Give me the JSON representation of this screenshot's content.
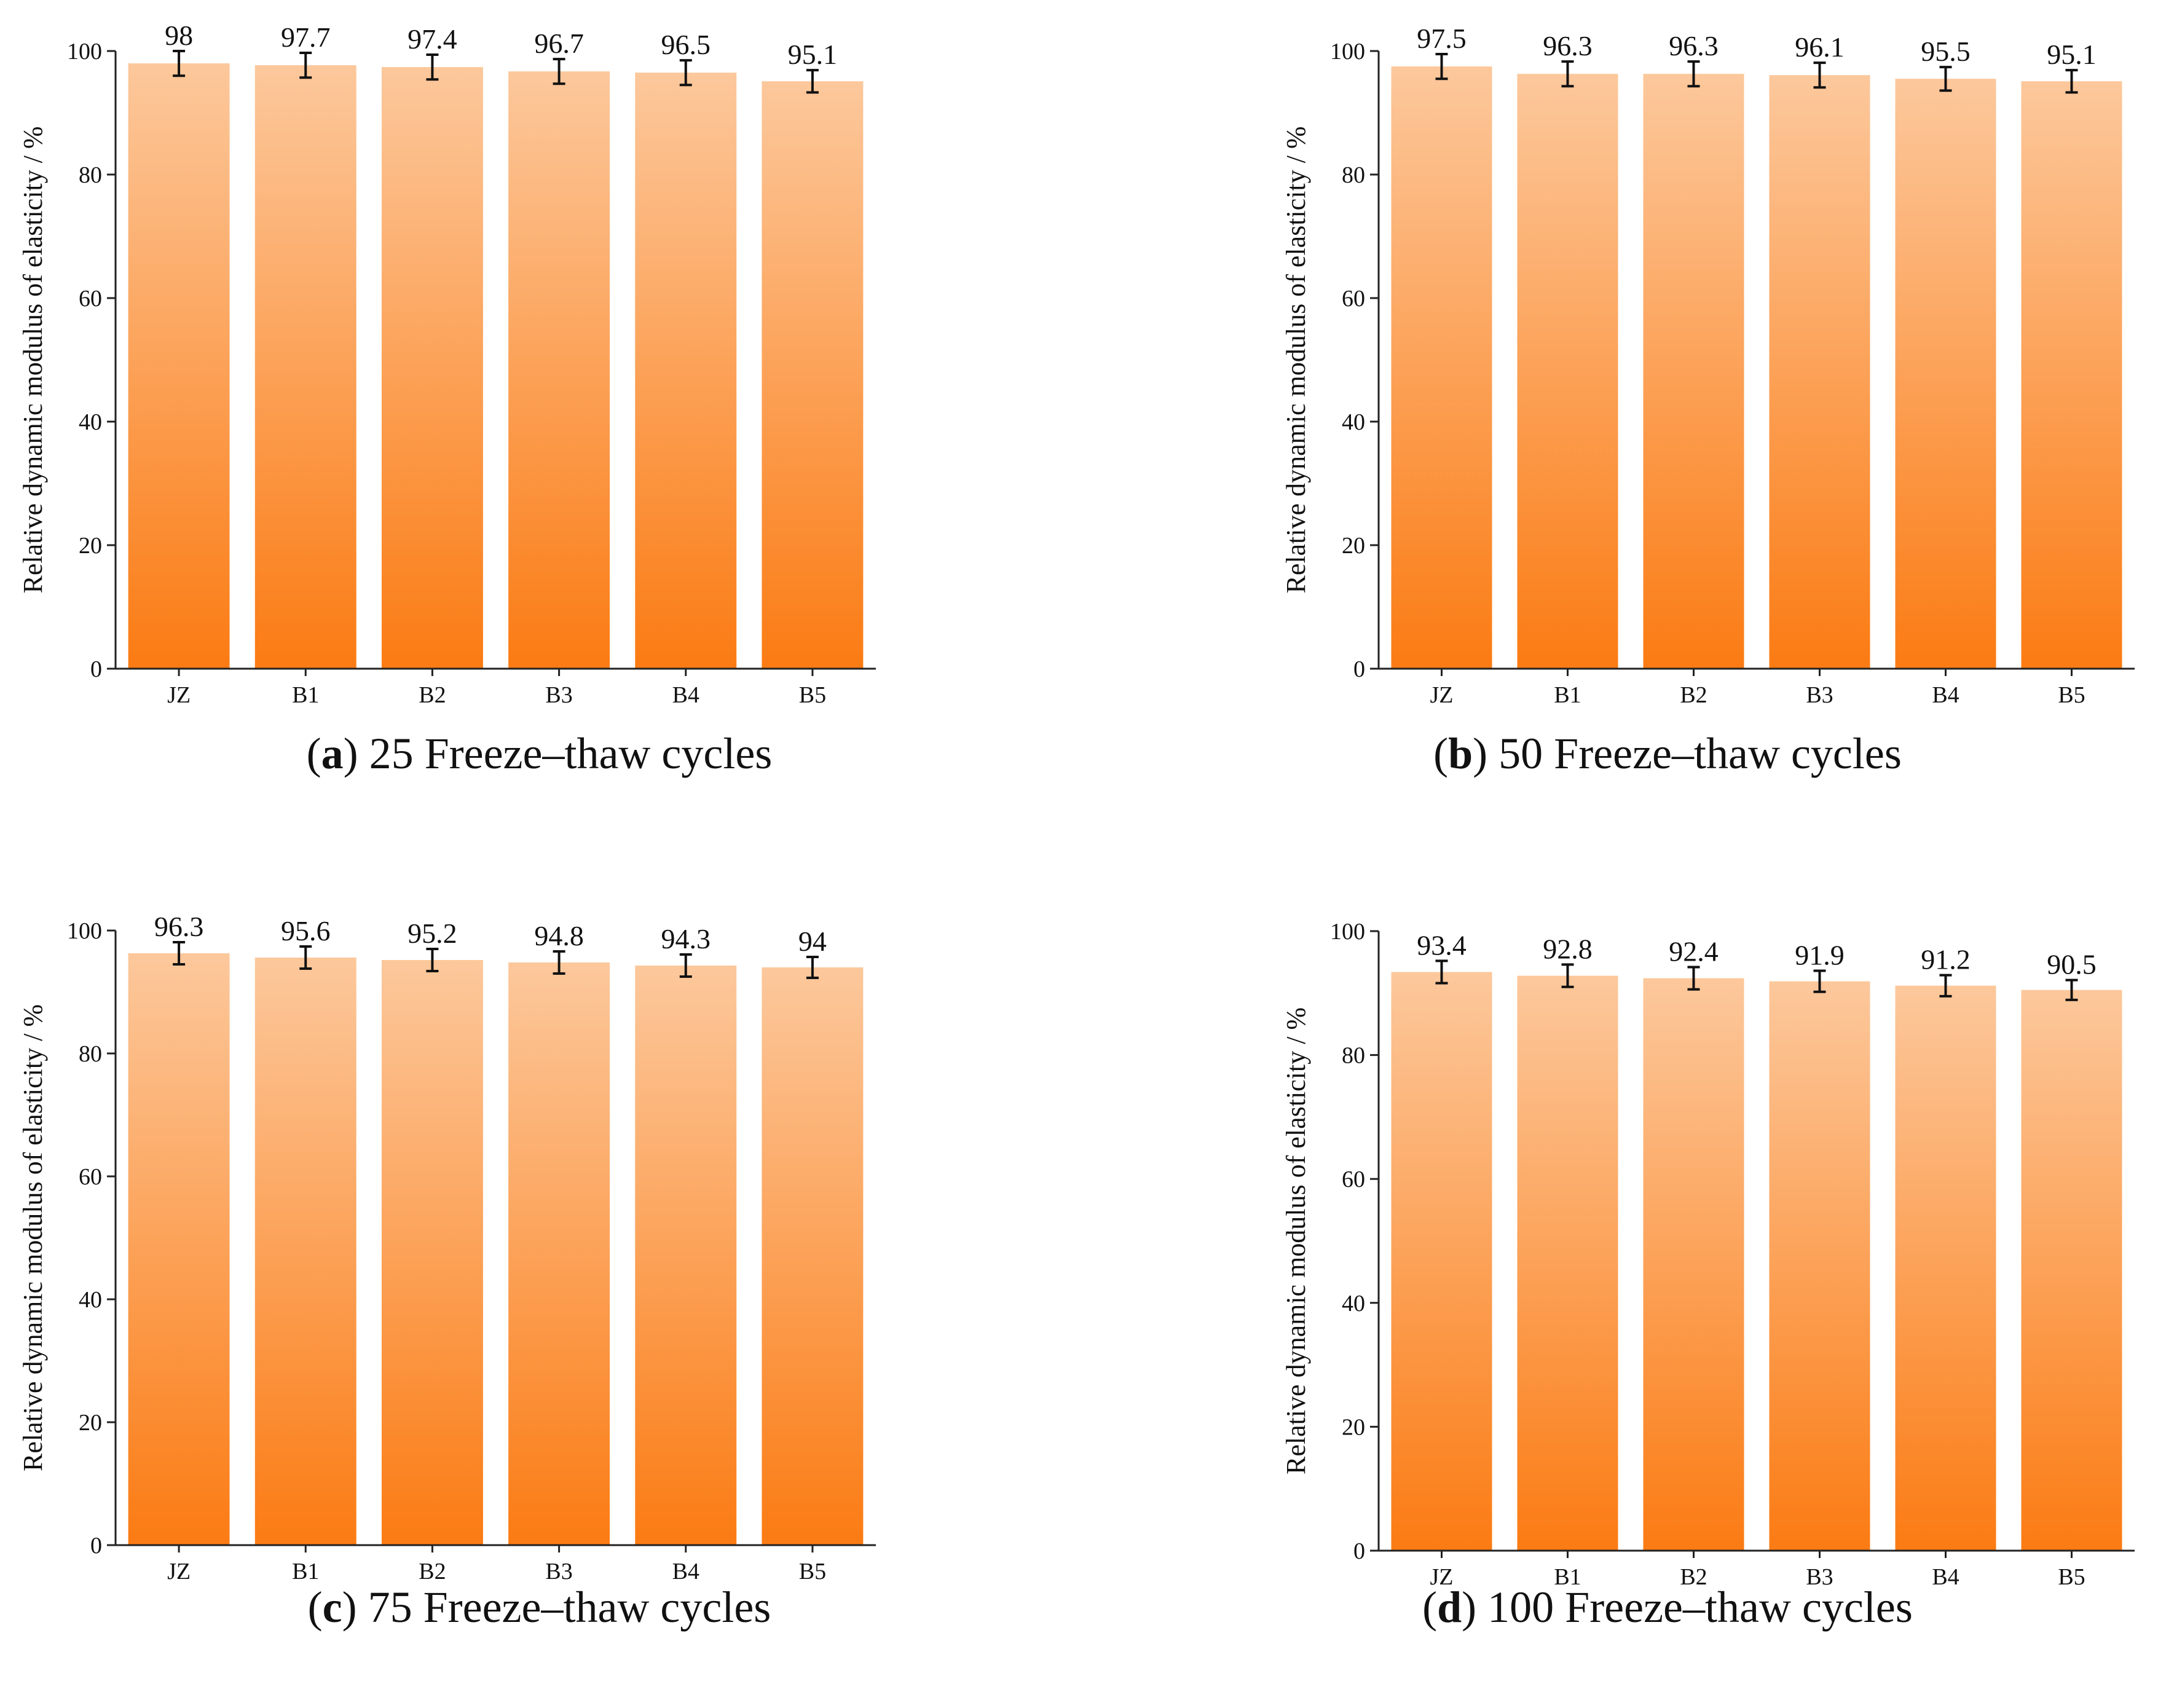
{
  "chart_data": [
    {
      "type": "bar",
      "title": "25 Freeze–thaw cycles",
      "caption_letter": "a",
      "categories": [
        "JZ",
        "B1",
        "B2",
        "B3",
        "B4",
        "B5"
      ],
      "values": [
        98,
        97.7,
        97.4,
        96.7,
        96.5,
        95.1
      ],
      "error": [
        2,
        2,
        2,
        2,
        2,
        1.8
      ],
      "ylabel": "Relative dynamic modulus of elasticity / %",
      "xlabel": "",
      "ylim": [
        0,
        100
      ],
      "yticks": [
        0,
        20,
        40,
        60,
        80,
        100
      ]
    },
    {
      "type": "bar",
      "title": "50 Freeze–thaw cycles",
      "caption_letter": "b",
      "categories": [
        "JZ",
        "B1",
        "B2",
        "B3",
        "B4",
        "B5"
      ],
      "values": [
        97.5,
        96.3,
        96.3,
        96.1,
        95.5,
        95.1
      ],
      "error": [
        2,
        2,
        2,
        2,
        1.9,
        1.8
      ],
      "ylabel": "Relative dynamic modulus of elasticity / %",
      "xlabel": "",
      "ylim": [
        0,
        100
      ],
      "yticks": [
        0,
        20,
        40,
        60,
        80,
        100
      ]
    },
    {
      "type": "bar",
      "title": "75 Freeze–thaw cycles",
      "caption_letter": "c",
      "categories": [
        "JZ",
        "B1",
        "B2",
        "B3",
        "B4",
        "B5"
      ],
      "values": [
        96.3,
        95.6,
        95.2,
        94.8,
        94.3,
        94
      ],
      "error": [
        1.8,
        1.8,
        1.8,
        1.8,
        1.8,
        1.7
      ],
      "ylabel": "Relative dynamic modulus of elasticity / %",
      "xlabel": "",
      "ylim": [
        0,
        100
      ],
      "yticks": [
        0,
        20,
        40,
        60,
        80,
        100
      ]
    },
    {
      "type": "bar",
      "title": "100 Freeze–thaw cycles",
      "caption_letter": "d",
      "categories": [
        "JZ",
        "B1",
        "B2",
        "B3",
        "B4",
        "B5"
      ],
      "values": [
        93.4,
        92.8,
        92.4,
        91.9,
        91.2,
        90.5
      ],
      "error": [
        1.8,
        1.8,
        1.8,
        1.7,
        1.7,
        1.6
      ],
      "ylabel": "Relative dynamic modulus of elasticity / %",
      "xlabel": "",
      "ylim": [
        0,
        100
      ],
      "yticks": [
        0,
        20,
        40,
        60,
        80,
        100
      ]
    }
  ],
  "colors": {
    "bar_top": "#fcc89c",
    "bar_bottom": "#fb7b13",
    "axis": "#222222"
  }
}
